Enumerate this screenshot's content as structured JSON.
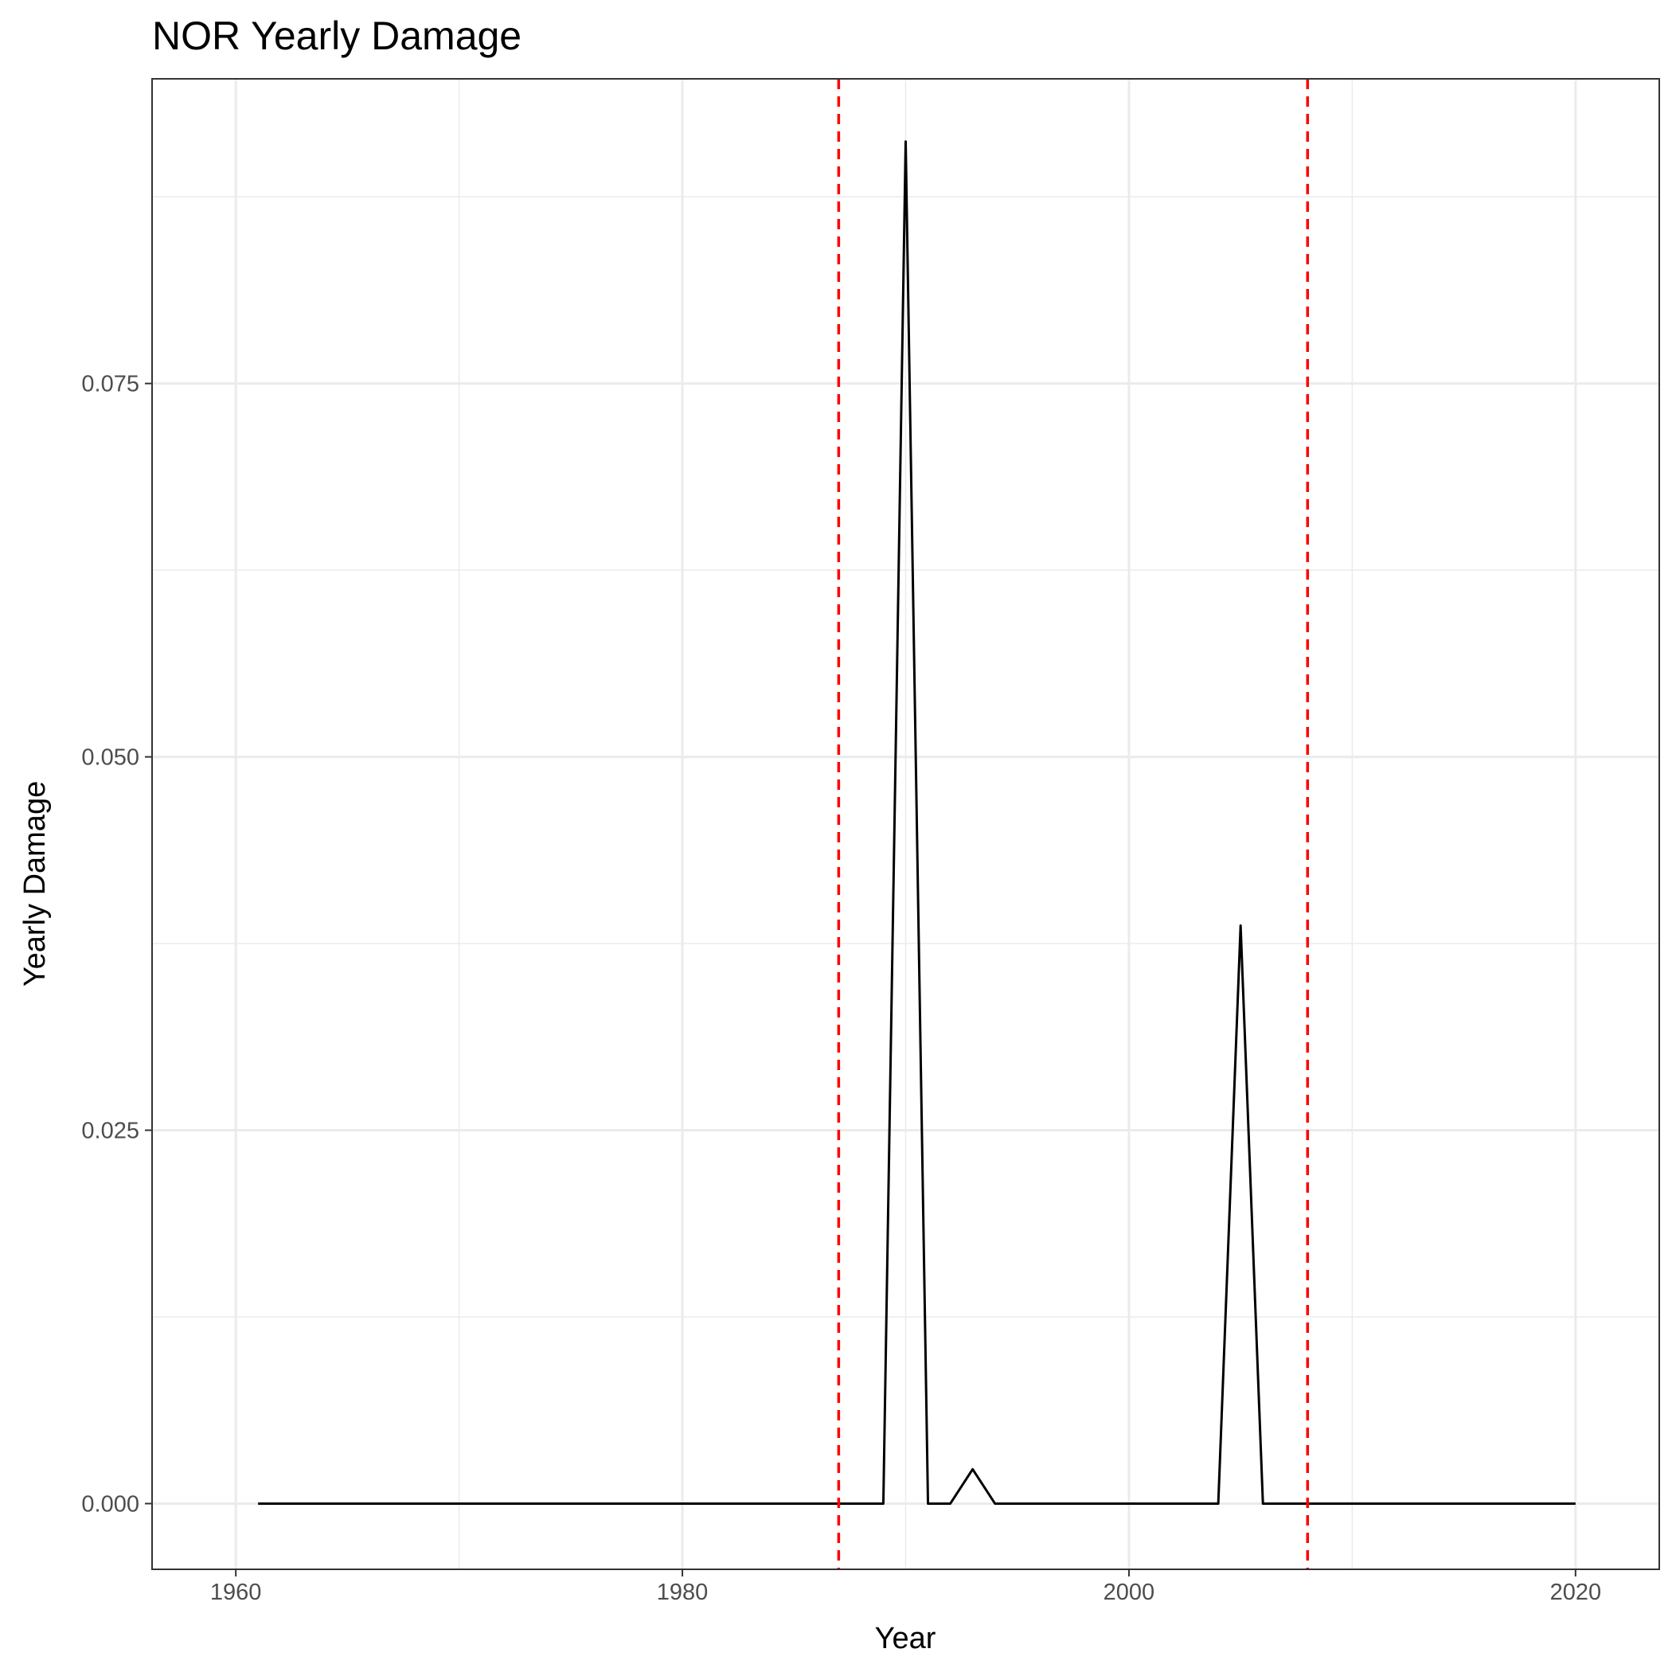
{
  "chart_data": {
    "type": "line",
    "title": "NOR Yearly Damage",
    "xlabel": "Year",
    "ylabel": "Yearly Damage",
    "xlim": [
      1956.25,
      2023.75
    ],
    "ylim": [
      -0.0044,
      0.0954
    ],
    "x_ticks": [
      1960,
      1980,
      2000,
      2020
    ],
    "x_tick_labels": [
      "1960",
      "1980",
      "2000",
      "2020"
    ],
    "y_ticks": [
      0.0,
      0.025,
      0.05,
      0.075
    ],
    "y_tick_labels": [
      "0.000",
      "0.025",
      "0.050",
      "0.075"
    ],
    "x_minor_ticks": [
      1970,
      1990,
      2010
    ],
    "y_minor_ticks": [
      0.0125,
      0.0375,
      0.0625,
      0.0875
    ],
    "grid": true,
    "series": [
      {
        "color": "#000000",
        "x": [
          1961,
          1962,
          1963,
          1964,
          1965,
          1966,
          1967,
          1968,
          1969,
          1970,
          1971,
          1972,
          1973,
          1974,
          1975,
          1976,
          1977,
          1978,
          1979,
          1980,
          1981,
          1982,
          1983,
          1984,
          1985,
          1986,
          1987,
          1988,
          1989,
          1990,
          1991,
          1992,
          1993,
          1994,
          1995,
          1996,
          1997,
          1998,
          1999,
          2000,
          2001,
          2002,
          2003,
          2004,
          2005,
          2006,
          2007,
          2008,
          2009,
          2010,
          2011,
          2012,
          2013,
          2014,
          2015,
          2016,
          2017,
          2018,
          2019,
          2020
        ],
        "y": [
          0,
          0,
          0,
          0,
          0,
          0,
          0,
          0,
          0,
          0,
          0,
          0,
          0,
          0,
          0,
          0,
          0,
          0,
          0,
          0,
          0,
          0,
          0,
          0,
          0,
          0,
          0,
          0,
          0,
          0.0912,
          0,
          0,
          0.0023,
          0,
          0,
          0,
          0,
          0,
          0,
          0,
          0,
          0,
          0,
          0,
          0.0387,
          0,
          0,
          0,
          0,
          0,
          0,
          0,
          0,
          0,
          0,
          0,
          0,
          0,
          0,
          0
        ]
      }
    ],
    "vlines": [
      {
        "x": 1987,
        "color": "#ff0000",
        "linetype": "dashed"
      },
      {
        "x": 2008,
        "color": "#ff0000",
        "linetype": "dashed"
      }
    ]
  }
}
